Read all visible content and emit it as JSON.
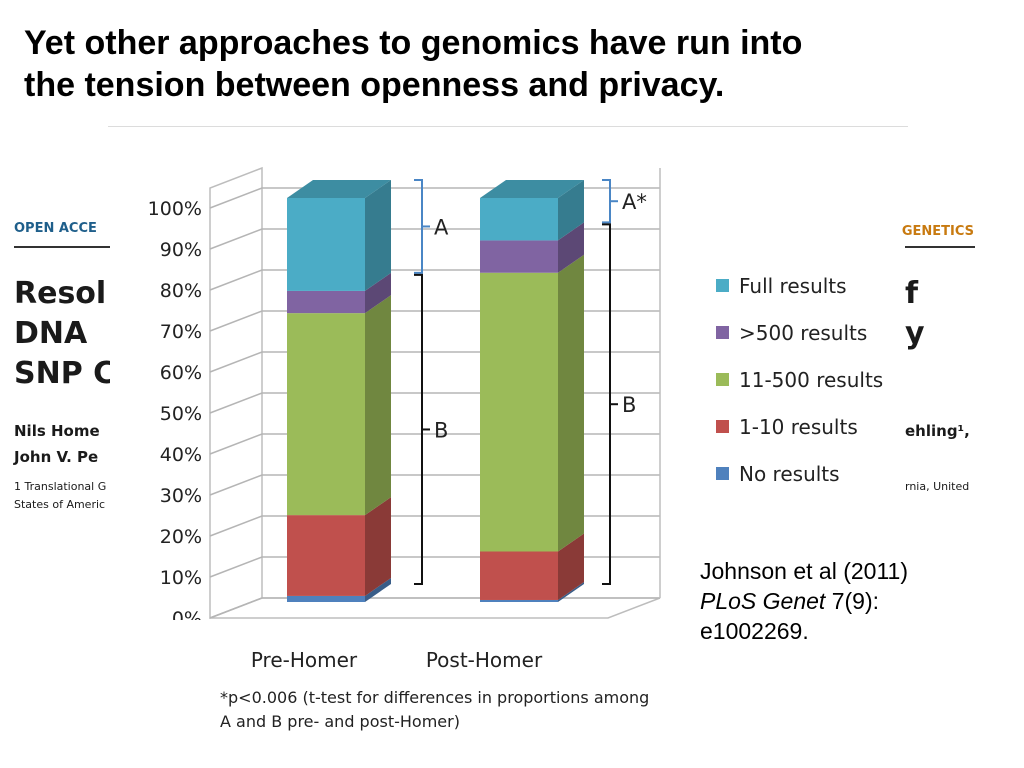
{
  "slide": {
    "title_line1": "Yet other approaches to genomics have run into",
    "title_line2": "the tension between openness and privacy."
  },
  "paper_background": {
    "logo": "OPEN ACCE",
    "journal_fragment": "GENETICS",
    "title_lines": [
      "Resol",
      "DNA ",
      "SNP C"
    ],
    "title_right": [
      "f",
      "y"
    ],
    "authors_line1": "Nils Home",
    "authors_right": "ehling¹,",
    "authors_line2": "John V. Pe",
    "affil_line1": "1 Translational G",
    "affil_right": "rnia, United",
    "affil_line2": "States of Americ"
  },
  "chart_data": {
    "type": "stacked-bar-3d",
    "categories": [
      "Pre-Homer",
      "Post-Homer"
    ],
    "series": [
      {
        "name": "No results",
        "color": "#4f81bd",
        "values": [
          1.5,
          0.5
        ]
      },
      {
        "name": "1-10 results",
        "color": "#c0504d",
        "values": [
          20,
          12
        ]
      },
      {
        "name": "11-500 results",
        "color": "#9bbb59",
        "values": [
          50,
          69
        ]
      },
      {
        "name": ">500 results",
        "color": "#8064a2",
        "values": [
          5.5,
          8
        ]
      },
      {
        "name": "Full results",
        "color": "#4bacc6",
        "values": [
          23,
          10.5
        ]
      }
    ],
    "ylim": [
      0,
      100
    ],
    "yticks": [
      "0%",
      "10%",
      "20%",
      "30%",
      "40%",
      "50%",
      "60%",
      "70%",
      "80%",
      "90%",
      "100%"
    ],
    "legend_position": "right",
    "legend_order": [
      "Full results",
      ">500 results",
      "11-500 results",
      "1-10 results",
      "No results"
    ],
    "brackets": [
      {
        "label": "A",
        "category": "Pre-Homer",
        "from": 77,
        "to": 100
      },
      {
        "label": "B",
        "category": "Pre-Homer",
        "from": 0,
        "to": 77
      },
      {
        "label": "A*",
        "category": "Post-Homer",
        "from": 89.5,
        "to": 100
      },
      {
        "label": "B",
        "category": "Post-Homer",
        "from": 0,
        "to": 89.5
      }
    ],
    "footnote_line1": "*p<0.006 (t-test for differences in proportions among",
    "footnote_line2": "A and B pre- and post-Homer)"
  },
  "citation": {
    "line1": "Johnson et al (2011)",
    "journal": "PLoS Genet",
    "volume": " 7(9):",
    "line3": "e1002269."
  }
}
